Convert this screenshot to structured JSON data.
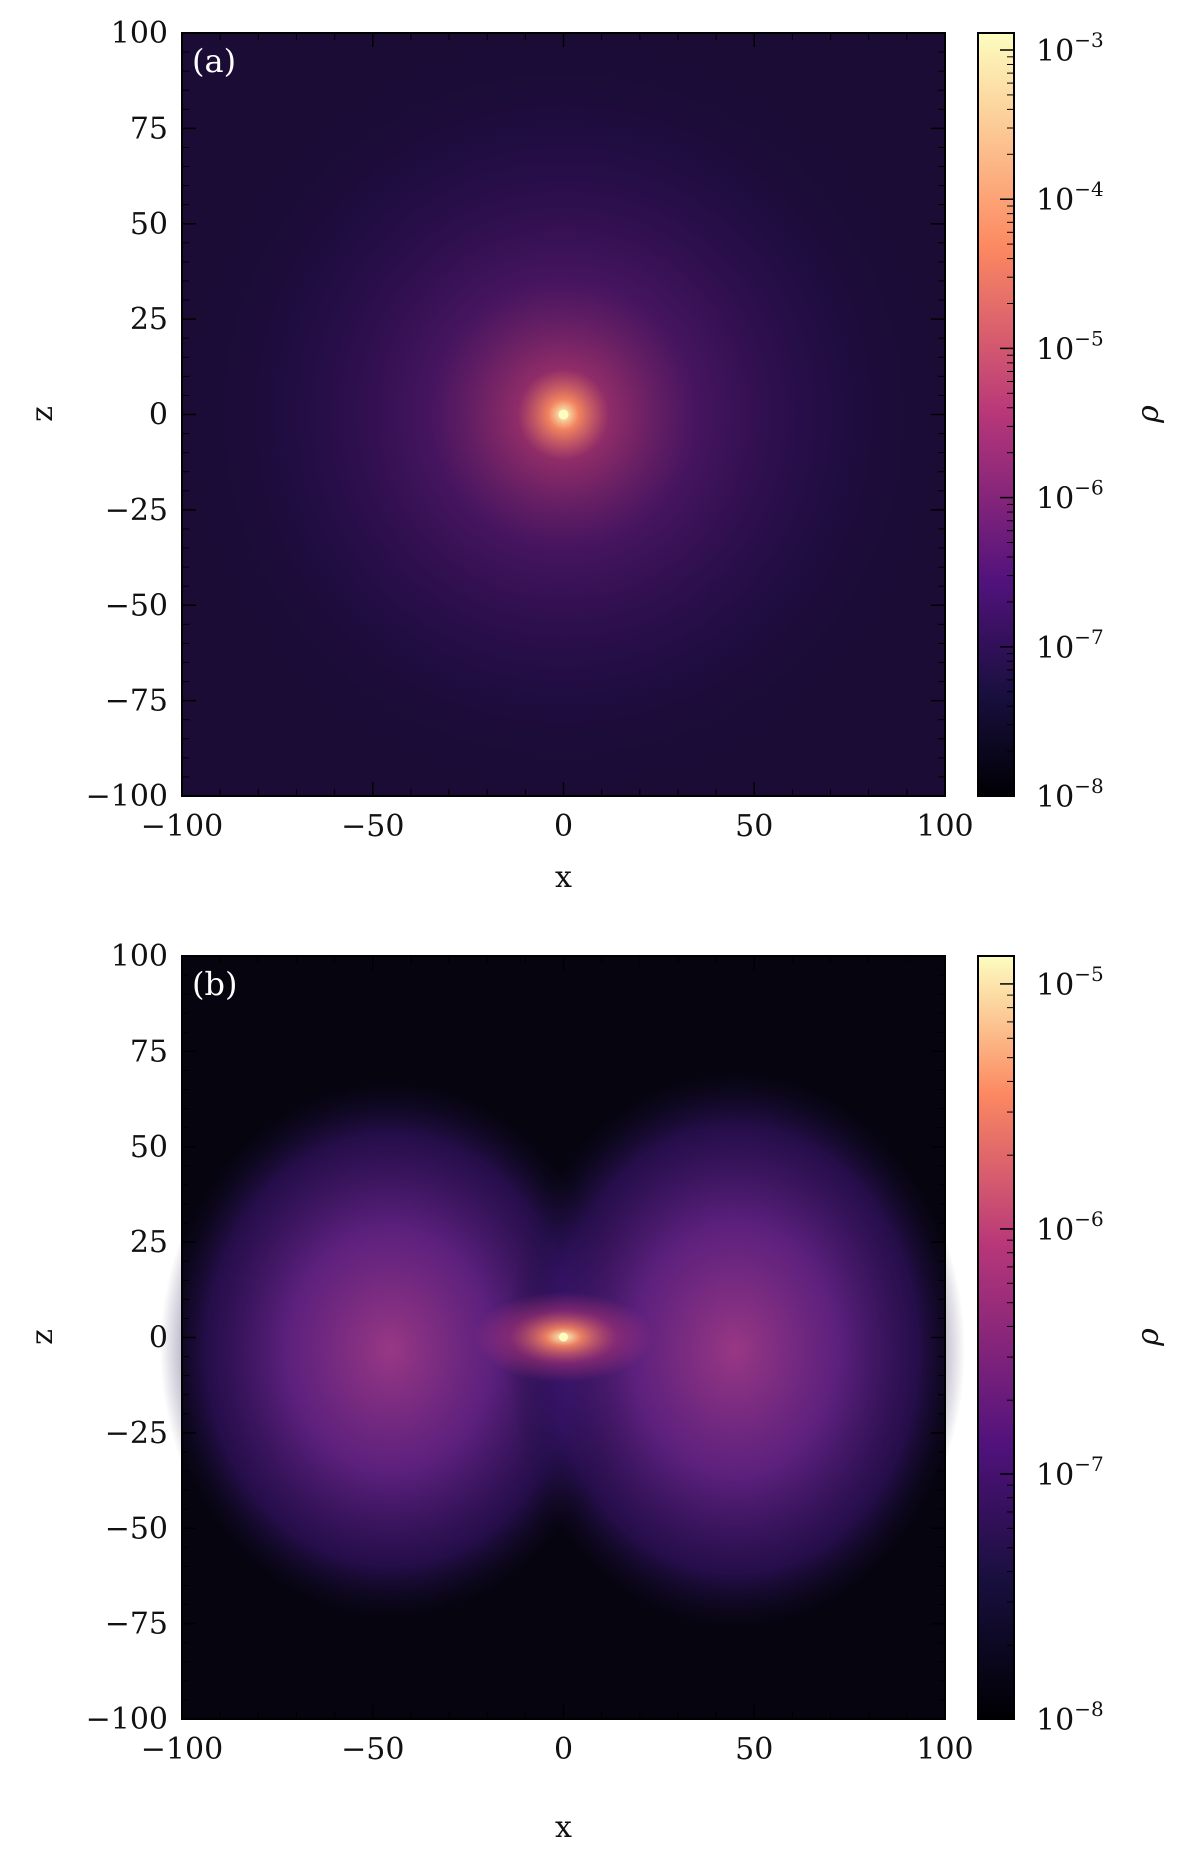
{
  "chart_data": [
    {
      "type": "heatmap",
      "panel_label": "(a)",
      "xlabel": "x",
      "ylabel": "z",
      "xlim": [
        -100,
        100
      ],
      "ylim": [
        -100,
        100
      ],
      "x_ticks": [
        -100,
        -50,
        0,
        50,
        100
      ],
      "y_ticks": [
        100,
        75,
        50,
        25,
        0,
        -25,
        -50,
        -75,
        -100
      ],
      "x_tick_labels": [
        "−100",
        "−50",
        "0",
        "50",
        "100"
      ],
      "y_tick_labels": [
        "100",
        "75",
        "50",
        "25",
        "0",
        "−25",
        "−50",
        "−75",
        "−100"
      ],
      "colorbar": {
        "label": "ρ",
        "scale": "log",
        "range": [
          1e-08,
          0.0013
        ],
        "ticks": [
          1e-08,
          1e-07,
          1e-06,
          1e-05,
          0.0001,
          0.001
        ],
        "tick_labels": [
          {
            "base": "10",
            "exp": "−8"
          },
          {
            "base": "10",
            "exp": "−7"
          },
          {
            "base": "10",
            "exp": "−6"
          },
          {
            "base": "10",
            "exp": "−5"
          },
          {
            "base": "10",
            "exp": "−4"
          },
          {
            "base": "10",
            "exp": "−3"
          }
        ],
        "colormap": "magma"
      },
      "grid": false
    },
    {
      "type": "heatmap",
      "panel_label": "(b)",
      "xlabel": "x",
      "ylabel": "z",
      "xlim": [
        -100,
        100
      ],
      "ylim": [
        -100,
        100
      ],
      "x_ticks": [
        -100,
        -50,
        0,
        50,
        100
      ],
      "y_ticks": [
        100,
        75,
        50,
        25,
        0,
        -25,
        -50,
        -75,
        -100
      ],
      "x_tick_labels": [
        "−100",
        "−50",
        "0",
        "50",
        "100"
      ],
      "y_tick_labels": [
        "100",
        "75",
        "50",
        "25",
        "0",
        "−25",
        "−50",
        "−75",
        "−100"
      ],
      "colorbar": {
        "label": "ρ",
        "scale": "log",
        "range": [
          1e-08,
          1.3e-05
        ],
        "ticks": [
          1e-08,
          1e-07,
          1e-06,
          1e-05
        ],
        "tick_labels": [
          {
            "base": "10",
            "exp": "−8"
          },
          {
            "base": "10",
            "exp": "−7"
          },
          {
            "base": "10",
            "exp": "−6"
          },
          {
            "base": "10",
            "exp": "−5"
          }
        ],
        "colormap": "magma"
      },
      "grid": false
    }
  ],
  "colors": {
    "cmap_black": "#000004",
    "cmap_dark": "#180f3d",
    "cmap_purple": "#51127c",
    "cmap_magenta": "#b73779",
    "cmap_orange": "#fc8961",
    "cmap_yellow": "#fcfdbf"
  }
}
